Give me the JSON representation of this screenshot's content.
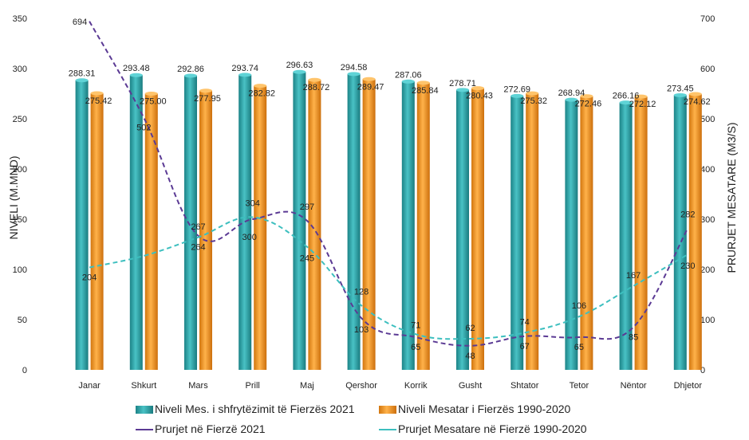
{
  "chart_data": {
    "type": "bar",
    "categories": [
      "Janar",
      "Shkurt",
      "Mars",
      "Prill",
      "Maj",
      "Qershor",
      "Korrik",
      "Gusht",
      "Shtator",
      "Tetor",
      "Nëntor",
      "Dhjetor"
    ],
    "bar_series": [
      {
        "name": "Niveli Mes. i shfrytëzimit të Fierzës 2021",
        "color": "#2ba3a7",
        "values": [
          288.31,
          293.48,
          292.86,
          293.74,
          296.63,
          294.58,
          287.06,
          278.71,
          272.69,
          268.94,
          266.16,
          273.45
        ],
        "labels": [
          "288.31",
          "293.48",
          "292.86",
          "293.74",
          "296.63",
          "294.58",
          "287.06",
          "278.71",
          "272.69",
          "268.94",
          "266.16",
          "273.45"
        ]
      },
      {
        "name": "Niveli Mesatar i Fierzës 1990-2020",
        "color": "#f0921e",
        "values": [
          275.42,
          275.0,
          277.95,
          282.82,
          288.72,
          289.47,
          285.84,
          280.43,
          275.32,
          272.46,
          272.12,
          274.62
        ],
        "labels": [
          "275.42",
          "275.00",
          "277.95",
          "282.82",
          "288.72",
          "289.47",
          "285.84",
          "280.43",
          "275.32",
          "272.46",
          "272.12",
          "274.62"
        ]
      }
    ],
    "line_series": [
      {
        "name": "Prurjet në Fierzë 2021",
        "color": "#5b3a94",
        "values": [
          694,
          502,
          267,
          300,
          297,
          103,
          65,
          48,
          67,
          65,
          85,
          282
        ],
        "labels": [
          "694",
          "502",
          "267",
          "300",
          "297",
          "103",
          "65",
          "48",
          "67",
          "65",
          "85",
          "282"
        ]
      },
      {
        "name": "Prurjet Mesatare në Fierzë 1990-2020",
        "color": "#3dbfbf",
        "values": [
          204,
          227,
          264,
          304,
          245,
          128,
          71,
          62,
          74,
          106,
          167,
          230
        ],
        "labels": [
          "204",
          "",
          "264",
          "304",
          "245",
          "128",
          "71",
          "62",
          "74",
          "106",
          "167",
          "230"
        ]
      }
    ],
    "ylabel": "NIVELI (M.MND)",
    "y2label": "PRURJET MESATARE (M3/S)",
    "ylim": [
      0,
      350
    ],
    "y2lim": [
      0,
      700
    ],
    "yticks": [
      "0",
      "50",
      "100",
      "150",
      "200",
      "250",
      "300",
      "350"
    ],
    "y2ticks": [
      "0",
      "100",
      "200",
      "300",
      "400",
      "500",
      "600",
      "700"
    ],
    "grid": false,
    "legend": "bottom"
  }
}
